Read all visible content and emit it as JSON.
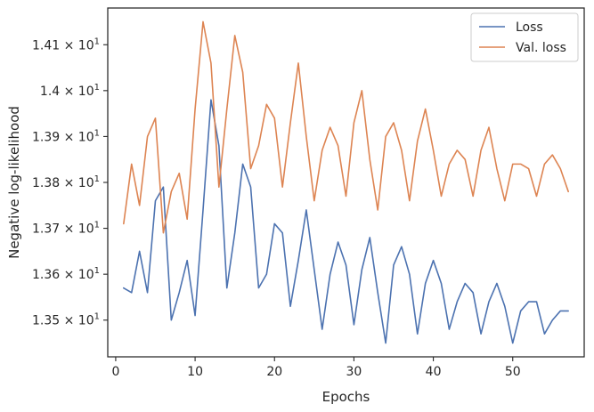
{
  "chart_data": {
    "type": "line",
    "title": "",
    "xlabel": "Epochs",
    "ylabel": "Negative log-likelihood",
    "xlim": [
      -1,
      59
    ],
    "ylim": [
      13.42,
      14.18
    ],
    "x_ticks": [
      0,
      10,
      20,
      30,
      40,
      50
    ],
    "y_ticks": [
      {
        "value": 13.5,
        "mantissa": "1.35",
        "exponent": "1"
      },
      {
        "value": 13.6,
        "mantissa": "1.36",
        "exponent": "1"
      },
      {
        "value": 13.7,
        "mantissa": "1.37",
        "exponent": "1"
      },
      {
        "value": 13.8,
        "mantissa": "1.38",
        "exponent": "1"
      },
      {
        "value": 13.9,
        "mantissa": "1.39",
        "exponent": "1"
      },
      {
        "value": 14.0,
        "mantissa": "1.4",
        "exponent": "1"
      },
      {
        "value": 14.1,
        "mantissa": "1.41",
        "exponent": "1"
      }
    ],
    "tick_base": "10",
    "tick_times": "×",
    "grid": false,
    "legend_position": "top-right",
    "x": [
      1,
      2,
      3,
      4,
      5,
      6,
      7,
      8,
      9,
      10,
      11,
      12,
      13,
      14,
      15,
      16,
      17,
      18,
      19,
      20,
      21,
      22,
      23,
      24,
      25,
      26,
      27,
      28,
      29,
      30,
      31,
      32,
      33,
      34,
      35,
      36,
      37,
      38,
      39,
      40,
      41,
      42,
      43,
      44,
      45,
      46,
      47,
      48,
      49,
      50,
      51,
      52,
      53,
      54,
      55,
      56,
      57
    ],
    "series": [
      {
        "name": "Loss",
        "color": "#4c72b0",
        "values": [
          13.57,
          13.56,
          13.65,
          13.56,
          13.76,
          13.79,
          13.5,
          13.56,
          13.63,
          13.51,
          13.74,
          13.98,
          13.88,
          13.57,
          13.69,
          13.84,
          13.79,
          13.57,
          13.6,
          13.71,
          13.69,
          13.53,
          13.63,
          13.74,
          13.61,
          13.48,
          13.6,
          13.67,
          13.62,
          13.49,
          13.61,
          13.68,
          13.56,
          13.45,
          13.62,
          13.66,
          13.6,
          13.47,
          13.58,
          13.63,
          13.58,
          13.48,
          13.54,
          13.58,
          13.56,
          13.47,
          13.54,
          13.58,
          13.53,
          13.45,
          13.52,
          13.54,
          13.54,
          13.47,
          13.5,
          13.52,
          13.52
        ]
      },
      {
        "name": "Val. loss",
        "color": "#dd8452",
        "values": [
          13.71,
          13.84,
          13.75,
          13.9,
          13.94,
          13.69,
          13.78,
          13.82,
          13.72,
          13.96,
          14.15,
          14.06,
          13.79,
          13.96,
          14.12,
          14.04,
          13.83,
          13.88,
          13.97,
          13.94,
          13.79,
          13.93,
          14.06,
          13.9,
          13.76,
          13.87,
          13.92,
          13.88,
          13.77,
          13.93,
          14.0,
          13.85,
          13.74,
          13.9,
          13.93,
          13.87,
          13.76,
          13.89,
          13.96,
          13.87,
          13.77,
          13.84,
          13.87,
          13.85,
          13.77,
          13.87,
          13.92,
          13.83,
          13.76,
          13.84,
          13.84,
          13.83,
          13.77,
          13.84,
          13.86,
          13.83,
          13.78
        ]
      }
    ]
  }
}
